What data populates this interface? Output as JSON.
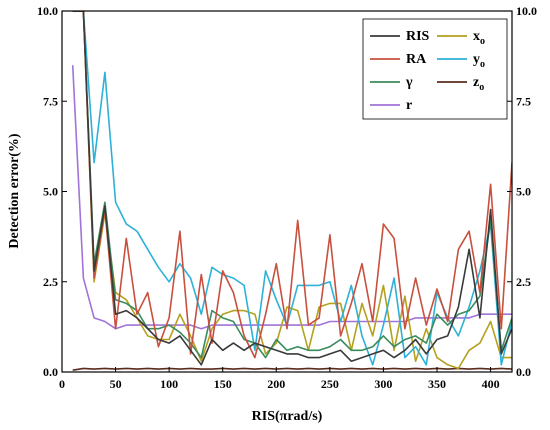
{
  "chart_data": {
    "type": "line",
    "title": "",
    "xlabel": "RIS(πrad/s)",
    "ylabel": "Detection error(%)",
    "xlim": [
      0,
      420
    ],
    "ylim": [
      0,
      10
    ],
    "xticks": [
      0,
      50,
      100,
      150,
      200,
      250,
      300,
      350,
      400
    ],
    "yticks": [
      0.0,
      2.5,
      5.0,
      7.5,
      10.0
    ],
    "ytick_labels": [
      "0.0",
      "2.5",
      "5.0",
      "7.5",
      "10.0"
    ],
    "right_axis_mirrored": true,
    "grid": false,
    "legend": {
      "placement": "top-right",
      "columns": 2
    },
    "x": [
      10,
      20,
      30,
      40,
      50,
      60,
      70,
      80,
      90,
      100,
      110,
      120,
      130,
      140,
      150,
      160,
      170,
      180,
      190,
      200,
      210,
      220,
      230,
      240,
      250,
      260,
      270,
      280,
      290,
      300,
      310,
      320,
      330,
      340,
      350,
      360,
      370,
      380,
      390,
      400,
      410,
      420
    ],
    "series": [
      {
        "name": "RIS",
        "color": "#3a3a3a",
        "values": [
          10.0,
          10.0,
          2.8,
          4.6,
          1.6,
          1.7,
          1.5,
          1.2,
          0.9,
          0.8,
          1.0,
          0.6,
          0.2,
          0.9,
          0.6,
          0.8,
          0.6,
          0.8,
          0.7,
          0.6,
          0.5,
          0.5,
          0.4,
          0.4,
          0.5,
          0.6,
          0.3,
          0.4,
          0.5,
          0.6,
          0.4,
          0.6,
          0.9,
          0.5,
          0.9,
          1.0,
          1.8,
          3.4,
          1.5,
          4.5,
          0.5,
          1.2
        ]
      },
      {
        "name": "RA",
        "color": "#c8503e",
        "values": [
          10.0,
          10.0,
          2.6,
          4.5,
          1.2,
          3.7,
          1.6,
          2.2,
          0.7,
          1.5,
          3.9,
          0.5,
          2.7,
          0.8,
          2.8,
          2.2,
          1.0,
          0.4,
          1.6,
          3.0,
          1.2,
          4.2,
          1.3,
          1.5,
          3.8,
          1.0,
          1.9,
          3.0,
          1.4,
          4.1,
          3.7,
          1.2,
          2.6,
          1.3,
          2.3,
          1.4,
          3.4,
          3.9,
          2.2,
          5.2,
          1.2,
          5.8
        ]
      },
      {
        "name": "γ",
        "color": "#3a8c5c",
        "values": [
          10.0,
          10.0,
          3.0,
          4.7,
          2.0,
          1.9,
          1.7,
          1.2,
          1.2,
          1.3,
          1.1,
          0.8,
          0.4,
          1.7,
          1.5,
          1.4,
          0.9,
          0.8,
          0.4,
          0.9,
          0.6,
          0.7,
          0.6,
          0.6,
          0.7,
          0.9,
          0.6,
          0.6,
          0.7,
          1.0,
          0.7,
          0.9,
          1.0,
          0.8,
          1.6,
          1.3,
          1.6,
          1.7,
          2.1,
          4.2,
          0.6,
          1.5
        ]
      },
      {
        "name": "r",
        "color": "#a173d8",
        "values": [
          8.5,
          2.6,
          1.5,
          1.4,
          1.2,
          1.3,
          1.3,
          1.3,
          1.3,
          1.3,
          1.3,
          1.3,
          1.2,
          1.3,
          1.3,
          1.3,
          1.3,
          1.3,
          1.3,
          1.3,
          1.3,
          1.3,
          1.3,
          1.3,
          1.4,
          1.4,
          1.4,
          1.4,
          1.4,
          1.4,
          1.4,
          1.4,
          1.5,
          1.5,
          1.5,
          1.5,
          1.5,
          1.5,
          1.6,
          1.6,
          1.6,
          1.6
        ]
      },
      {
        "name": "x<sub>o</sub>",
        "name_base": "x",
        "name_sub": "o",
        "color": "#b5a11e",
        "values": [
          10.0,
          10.0,
          2.5,
          4.4,
          2.2,
          2.0,
          1.5,
          1.0,
          0.9,
          0.9,
          1.6,
          1.0,
          0.3,
          1.2,
          1.6,
          1.7,
          1.7,
          1.6,
          0.5,
          0.8,
          1.8,
          1.7,
          0.6,
          1.8,
          1.9,
          1.9,
          0.6,
          1.9,
          1.0,
          2.4,
          0.6,
          2.1,
          0.3,
          1.2,
          0.4,
          0.2,
          0.1,
          0.6,
          0.8,
          1.4,
          0.4,
          0.4
        ]
      },
      {
        "name": "y<sub>o</sub>",
        "name_base": "y",
        "name_sub": "o",
        "color": "#2eb1d8",
        "values": [
          10.0,
          10.0,
          5.8,
          8.3,
          4.7,
          4.1,
          3.9,
          3.4,
          2.9,
          2.5,
          3.0,
          2.6,
          1.6,
          2.9,
          2.7,
          2.6,
          2.4,
          0.6,
          2.8,
          2.0,
          1.3,
          2.4,
          2.4,
          2.4,
          2.5,
          1.4,
          2.4,
          1.0,
          0.2,
          1.3,
          2.6,
          0.4,
          0.7,
          0.2,
          2.2,
          1.5,
          1.0,
          1.8,
          2.8,
          4.1,
          0.2,
          1.4
        ]
      },
      {
        "name": "z<sub>o</sub>",
        "name_base": "z",
        "name_sub": "o",
        "color": "#5a2b1e",
        "values": [
          0.05,
          0.1,
          0.08,
          0.1,
          0.08,
          0.1,
          0.08,
          0.1,
          0.08,
          0.1,
          0.08,
          0.1,
          0.08,
          0.08,
          0.1,
          0.08,
          0.1,
          0.08,
          0.1,
          0.08,
          0.1,
          0.08,
          0.1,
          0.08,
          0.1,
          0.08,
          0.1,
          0.08,
          0.1,
          0.08,
          0.1,
          0.08,
          0.1,
          0.08,
          0.1,
          0.08,
          0.1,
          0.08,
          0.1,
          0.08,
          0.1,
          0.08
        ]
      }
    ]
  }
}
